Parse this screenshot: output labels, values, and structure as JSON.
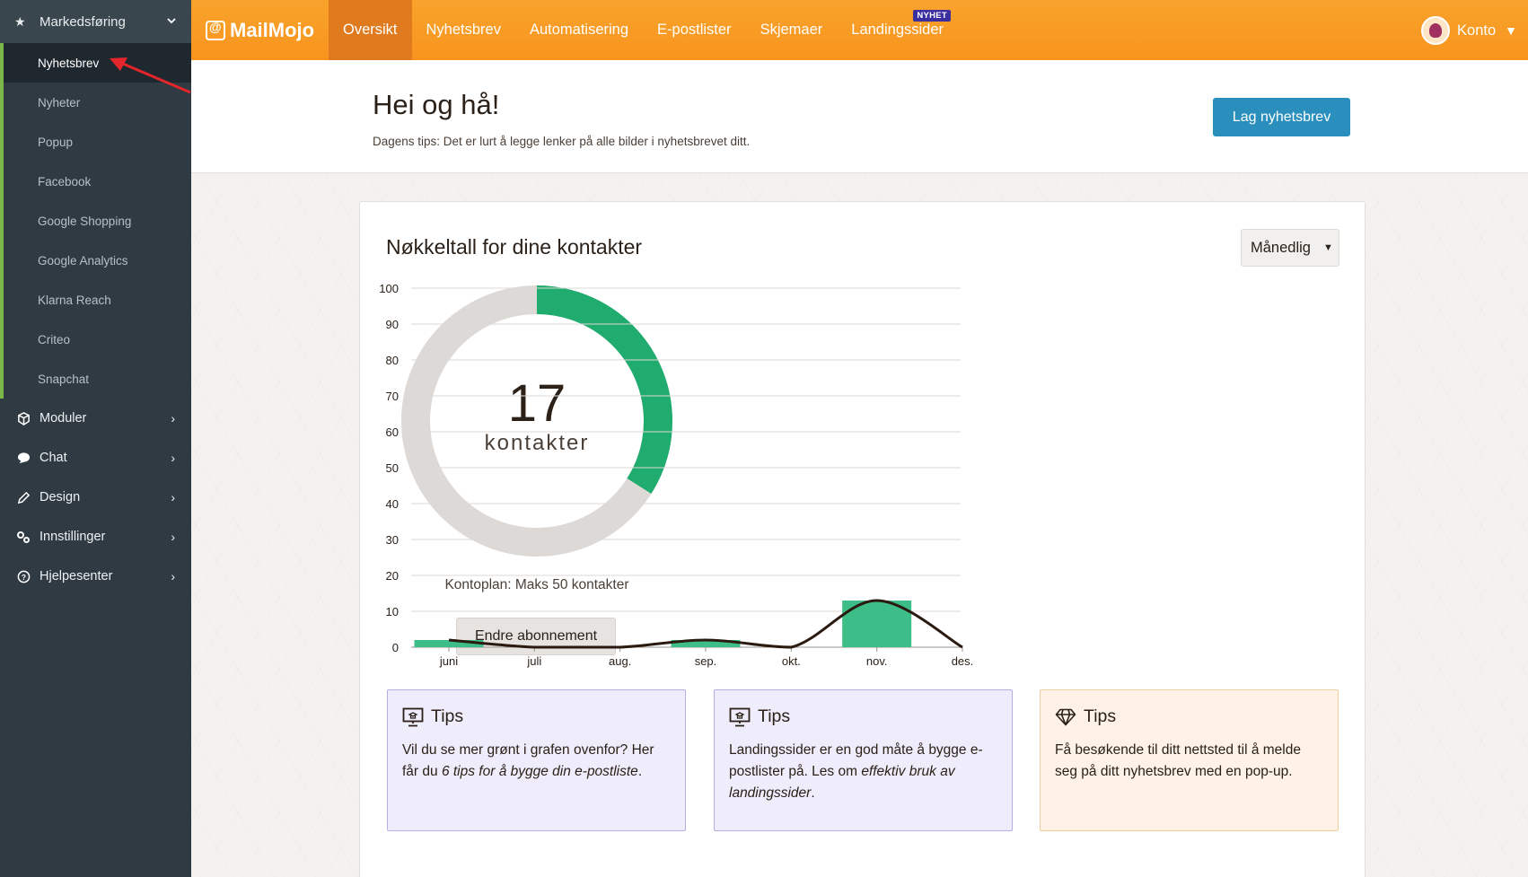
{
  "sidebar": {
    "section_label": "Markedsføring",
    "sub_items": [
      "Nyhetsbrev",
      "Nyheter",
      "Popup",
      "Facebook",
      "Google Shopping",
      "Google Analytics",
      "Klarna Reach",
      "Criteo",
      "Snapchat"
    ],
    "active_sub_item": "Nyhetsbrev",
    "items": [
      "Moduler",
      "Chat",
      "Design",
      "Innstillinger",
      "Hjelpesenter"
    ]
  },
  "topnav": {
    "logo": "MailMojo",
    "items": [
      "Oversikt",
      "Nyhetsbrev",
      "Automatisering",
      "E-postlister",
      "Skjemaer",
      "Landingssider"
    ],
    "active": "Oversikt",
    "badge": "NYHET",
    "account": "Konto"
  },
  "header": {
    "greeting": "Hei og hå!",
    "tip": "Dagens tips: Det er lurt å legge lenker på alle bilder i nyhetsbrevet ditt.",
    "create_button": "Lag nyhetsbrev"
  },
  "stats": {
    "title": "Nøkkeltall for dine kontakter",
    "period_select": "Månedlig",
    "contacts": "17",
    "contacts_label": "kontakter",
    "max_contacts": 50,
    "plan_text": "Kontoplan: Maks 50 kontakter",
    "change_button": "Endre abonnement"
  },
  "chart_data": {
    "type": "bar",
    "categories": [
      "juni",
      "juli",
      "aug.",
      "sep.",
      "okt.",
      "nov.",
      "des."
    ],
    "series": [
      {
        "type": "bar",
        "values": [
          2,
          0,
          0,
          2,
          0,
          13,
          0
        ]
      },
      {
        "type": "line",
        "values": [
          2,
          0,
          0,
          2,
          0,
          13,
          0
        ]
      }
    ],
    "ylim": [
      0,
      100
    ],
    "yticks": [
      0,
      10,
      20,
      30,
      40,
      50,
      60,
      70,
      80,
      90,
      100
    ],
    "grid": true,
    "colors": {
      "bar": "#3dbd87",
      "line": "#2b1a10"
    }
  },
  "tips": [
    {
      "title": "Tips",
      "icon": "presentation-icon",
      "pre": "Vil du se mer grønt i grafen ovenfor? Her får du ",
      "em": "6 tips for å bygge din e-postliste",
      "post": "."
    },
    {
      "title": "Tips",
      "icon": "presentation-icon",
      "pre": "Landingssider er en god måte å bygge e-postlister på. Les om ",
      "em": "effektiv bruk av landingssider",
      "post": "."
    },
    {
      "title": "Tips",
      "icon": "diamond-icon",
      "pre": "Få besøkende til ditt nettsted til å melde seg på ditt nyhetsbrev med en pop-up.",
      "em": "",
      "post": ""
    }
  ],
  "colors": {
    "accent": "#f7941d",
    "primary_button": "#2a8fbd",
    "donut_fill": "#1fac6e",
    "donut_track": "#dcd9d6"
  }
}
